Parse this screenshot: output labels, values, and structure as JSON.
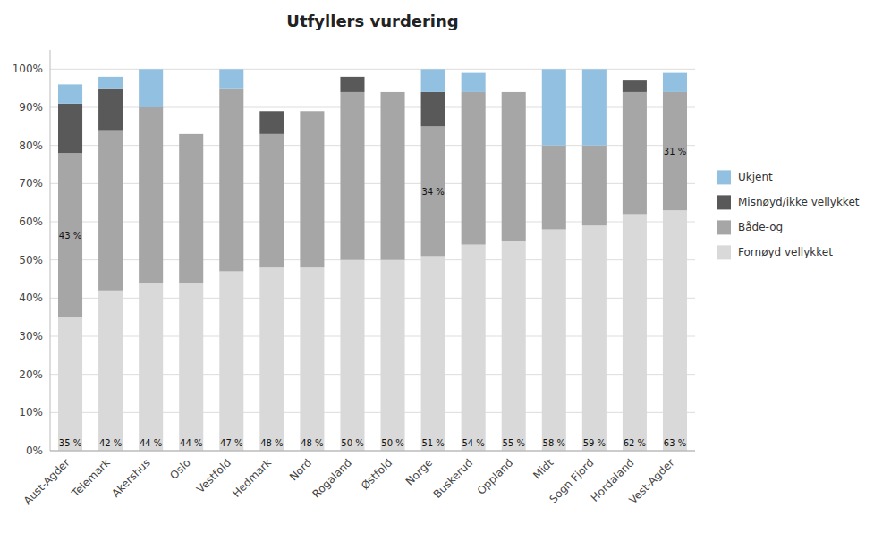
{
  "chart_data": {
    "type": "bar",
    "title": "Utfyllers vurdering",
    "stacked": true,
    "grid": true,
    "legend": "right",
    "data_labels": true,
    "categories": [
      "Aust-Agder",
      "Telemark",
      "Akershus",
      "Oslo",
      "Vestfold",
      "Hedmark",
      "Nord",
      "Rogaland",
      "Østfold",
      "Norge",
      "Buskerud",
      "Oppland",
      "Midt",
      "Sogn Fjord",
      "Hordaland",
      "Vest-Agder"
    ],
    "series": [
      {
        "name": "Fornøyd vellykket",
        "color": "#d9d9d9",
        "values": [
          35,
          42,
          44,
          44,
          47,
          48,
          48,
          50,
          50,
          51,
          54,
          55,
          58,
          59,
          62,
          63
        ],
        "value_labels": [
          "35 %",
          "42 %",
          "44 %",
          "44 %",
          "47 %",
          "48 %",
          "48 %",
          "50 %",
          "50 %",
          "51 %",
          "54 %",
          "55 %",
          "58 %",
          "59 %",
          "62 %",
          "63 %"
        ]
      },
      {
        "name": "Både-og",
        "color": "#a6a6a6",
        "values": [
          43,
          42,
          46,
          39,
          48,
          35,
          41,
          44,
          44,
          34,
          40,
          39,
          22,
          21,
          32,
          31
        ],
        "value_labels": [
          "43 %",
          null,
          null,
          null,
          null,
          null,
          null,
          null,
          null,
          "34 %",
          null,
          null,
          null,
          null,
          null,
          "31 %"
        ]
      },
      {
        "name": "Misnøyd/ikke vellykket",
        "color": "#595959",
        "values": [
          13,
          11,
          0,
          0,
          0,
          6,
          0,
          4,
          0,
          9,
          0,
          0,
          0,
          0,
          3,
          0
        ]
      },
      {
        "name": "Ukjent",
        "color": "#92c0e0",
        "values": [
          5,
          3,
          10,
          0,
          5,
          0,
          0,
          0,
          0,
          6,
          5,
          0,
          20,
          20,
          0,
          5
        ]
      }
    ],
    "ylim": [
      0,
      105
    ],
    "yticks": [
      {
        "value": 0,
        "label": "0%"
      },
      {
        "value": 10,
        "label": "10%"
      },
      {
        "value": 20,
        "label": "20%"
      },
      {
        "value": 30,
        "label": "30%"
      },
      {
        "value": 40,
        "label": "40%"
      },
      {
        "value": 50,
        "label": "50%"
      },
      {
        "value": 60,
        "label": "60%"
      },
      {
        "value": 70,
        "label": "70%"
      },
      {
        "value": 80,
        "label": "80%"
      },
      {
        "value": 90,
        "label": "90%"
      },
      {
        "value": 100,
        "label": "100%"
      }
    ]
  }
}
